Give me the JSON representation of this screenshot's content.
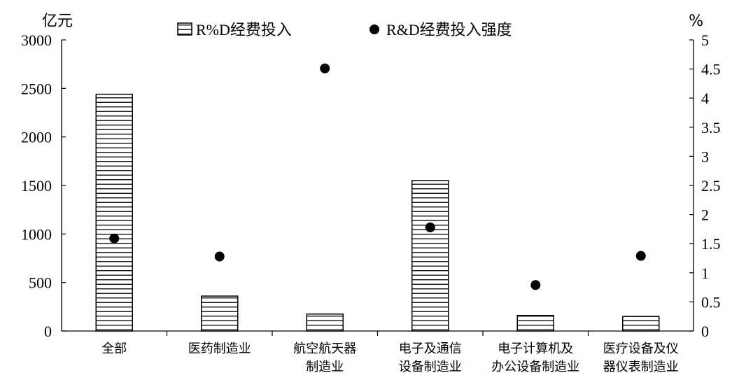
{
  "chart_data": {
    "type": "bar",
    "categories": [
      [
        "全部"
      ],
      [
        "医药制造业"
      ],
      [
        "航空航天器",
        "制造业"
      ],
      [
        "电子及通信",
        "设备制造业"
      ],
      [
        "电子计算机及",
        "办公设备制造业"
      ],
      [
        "医疗设备及仪",
        "器仪表制造业"
      ]
    ],
    "series": [
      {
        "name": "R%D经费投入",
        "kind": "bar",
        "axis": "left",
        "values": [
          2440,
          360,
          175,
          1550,
          160,
          150
        ]
      },
      {
        "name": "R&D经费投入强度",
        "kind": "scatter",
        "axis": "right",
        "values": [
          1.59,
          1.28,
          4.51,
          1.78,
          0.79,
          1.29
        ]
      }
    ],
    "y_left": {
      "label": "亿元",
      "ylim": [
        0,
        3000
      ],
      "ticks": [
        "0",
        "500",
        "1000",
        "1500",
        "2000",
        "2500",
        "3000"
      ]
    },
    "y_right": {
      "label": "%",
      "ylim": [
        0,
        5
      ],
      "ticks": [
        "0",
        "0.5",
        "1",
        "1.5",
        "2",
        "2.5",
        "3",
        "3.5",
        "4",
        "4.5",
        "5"
      ]
    },
    "legend": "top",
    "grid": false
  }
}
